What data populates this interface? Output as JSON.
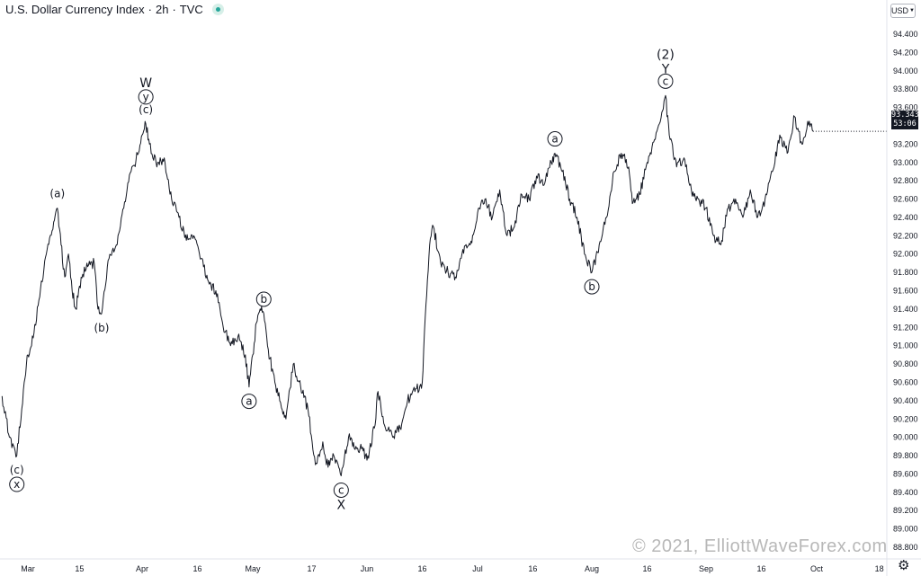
{
  "header": {
    "symbol": "U.S. Dollar Currency Index",
    "interval": "2h",
    "source": "TVC",
    "separator": "·",
    "status_color": "#26a69a"
  },
  "currency_button": {
    "label": "USD"
  },
  "price_tag": {
    "price": "93.343",
    "countdown": "53:06"
  },
  "watermark": "© 2021, ElliottWaveForex.com",
  "settings_icon": "gear-icon",
  "chart_data": {
    "type": "line",
    "title": "",
    "xlabel": "",
    "ylabel": "",
    "ylim": [
      88.8,
      94.4
    ],
    "yticks": [
      "94.400",
      "94.200",
      "94.000",
      "93.800",
      "93.600",
      "93.400",
      "93.200",
      "93.000",
      "92.800",
      "92.600",
      "92.400",
      "92.200",
      "92.000",
      "91.800",
      "91.600",
      "91.400",
      "91.200",
      "91.000",
      "90.800",
      "90.600",
      "90.400",
      "90.200",
      "90.000",
      "89.800",
      "89.600",
      "89.400",
      "89.200",
      "89.000",
      "88.800"
    ],
    "xticks": [
      {
        "label": "Mar",
        "x": "2021-03-01"
      },
      {
        "label": "15",
        "x": "2021-03-15"
      },
      {
        "label": "Apr",
        "x": "2021-04-01"
      },
      {
        "label": "16",
        "x": "2021-04-16"
      },
      {
        "label": "May",
        "x": "2021-05-01"
      },
      {
        "label": "17",
        "x": "2021-05-17"
      },
      {
        "label": "Jun",
        "x": "2021-06-01"
      },
      {
        "label": "16",
        "x": "2021-06-16"
      },
      {
        "label": "Jul",
        "x": "2021-07-01"
      },
      {
        "label": "16",
        "x": "2021-07-16"
      },
      {
        "label": "Aug",
        "x": "2021-08-01"
      },
      {
        "label": "16",
        "x": "2021-08-16"
      },
      {
        "label": "Sep",
        "x": "2021-09-01"
      },
      {
        "label": "16",
        "x": "2021-09-16"
      },
      {
        "label": "Oct",
        "x": "2021-10-01"
      },
      {
        "label": "18",
        "x": "2021-10-18"
      }
    ],
    "grid": false,
    "series": [
      {
        "color": "#131722",
        "points": [
          {
            "x": "2021-02-22",
            "y": 90.45
          },
          {
            "x": "2021-02-24",
            "y": 90.0
          },
          {
            "x": "2021-02-26",
            "y": 89.8
          },
          {
            "x": "2021-02-28",
            "y": 90.6
          },
          {
            "x": "2021-03-01",
            "y": 90.9
          },
          {
            "x": "2021-03-02",
            "y": 91.0
          },
          {
            "x": "2021-03-04",
            "y": 91.5
          },
          {
            "x": "2021-03-06",
            "y": 92.0
          },
          {
            "x": "2021-03-08",
            "y": 92.35
          },
          {
            "x": "2021-03-09",
            "y": 92.5
          },
          {
            "x": "2021-03-10",
            "y": 92.1
          },
          {
            "x": "2021-03-11",
            "y": 91.75
          },
          {
            "x": "2021-03-12",
            "y": 92.0
          },
          {
            "x": "2021-03-13",
            "y": 91.6
          },
          {
            "x": "2021-03-14",
            "y": 91.4
          },
          {
            "x": "2021-03-15",
            "y": 91.65
          },
          {
            "x": "2021-03-17",
            "y": 91.9
          },
          {
            "x": "2021-03-19",
            "y": 91.9
          },
          {
            "x": "2021-03-20",
            "y": 91.4
          },
          {
            "x": "2021-03-21",
            "y": 91.35
          },
          {
            "x": "2021-03-23",
            "y": 91.95
          },
          {
            "x": "2021-03-25",
            "y": 92.1
          },
          {
            "x": "2021-03-27",
            "y": 92.5
          },
          {
            "x": "2021-03-29",
            "y": 92.9
          },
          {
            "x": "2021-03-31",
            "y": 93.1
          },
          {
            "x": "2021-04-01",
            "y": 93.3
          },
          {
            "x": "2021-04-02",
            "y": 93.42
          },
          {
            "x": "2021-04-03",
            "y": 93.2
          },
          {
            "x": "2021-04-05",
            "y": 92.95
          },
          {
            "x": "2021-04-07",
            "y": 93.05
          },
          {
            "x": "2021-04-09",
            "y": 92.6
          },
          {
            "x": "2021-04-11",
            "y": 92.4
          },
          {
            "x": "2021-04-13",
            "y": 92.15
          },
          {
            "x": "2021-04-15",
            "y": 92.2
          },
          {
            "x": "2021-04-17",
            "y": 91.95
          },
          {
            "x": "2021-04-19",
            "y": 91.7
          },
          {
            "x": "2021-04-21",
            "y": 91.6
          },
          {
            "x": "2021-04-23",
            "y": 91.2
          },
          {
            "x": "2021-04-25",
            "y": 91.0
          },
          {
            "x": "2021-04-27",
            "y": 91.1
          },
          {
            "x": "2021-04-29",
            "y": 90.9
          },
          {
            "x": "2021-04-30",
            "y": 90.55
          },
          {
            "x": "2021-05-01",
            "y": 90.9
          },
          {
            "x": "2021-05-02",
            "y": 91.25
          },
          {
            "x": "2021-05-03",
            "y": 91.4
          },
          {
            "x": "2021-05-04",
            "y": 91.35
          },
          {
            "x": "2021-05-05",
            "y": 91.0
          },
          {
            "x": "2021-05-07",
            "y": 90.6
          },
          {
            "x": "2021-05-09",
            "y": 90.3
          },
          {
            "x": "2021-05-10",
            "y": 90.2
          },
          {
            "x": "2021-05-12",
            "y": 90.8
          },
          {
            "x": "2021-05-14",
            "y": 90.55
          },
          {
            "x": "2021-05-16",
            "y": 90.3
          },
          {
            "x": "2021-05-18",
            "y": 89.7
          },
          {
            "x": "2021-05-20",
            "y": 89.95
          },
          {
            "x": "2021-05-21",
            "y": 89.7
          },
          {
            "x": "2021-05-23",
            "y": 89.8
          },
          {
            "x": "2021-05-25",
            "y": 89.58
          },
          {
            "x": "2021-05-27",
            "y": 90.0
          },
          {
            "x": "2021-05-29",
            "y": 89.9
          },
          {
            "x": "2021-05-31",
            "y": 89.85
          },
          {
            "x": "2021-06-01",
            "y": 89.75
          },
          {
            "x": "2021-06-03",
            "y": 90.1
          },
          {
            "x": "2021-06-04",
            "y": 90.5
          },
          {
            "x": "2021-06-06",
            "y": 90.1
          },
          {
            "x": "2021-06-08",
            "y": 90.0
          },
          {
            "x": "2021-06-10",
            "y": 90.1
          },
          {
            "x": "2021-06-12",
            "y": 90.4
          },
          {
            "x": "2021-06-14",
            "y": 90.5
          },
          {
            "x": "2021-06-16",
            "y": 90.6
          },
          {
            "x": "2021-06-17",
            "y": 91.45
          },
          {
            "x": "2021-06-18",
            "y": 92.1
          },
          {
            "x": "2021-06-19",
            "y": 92.3
          },
          {
            "x": "2021-06-21",
            "y": 91.9
          },
          {
            "x": "2021-06-23",
            "y": 91.8
          },
          {
            "x": "2021-06-25",
            "y": 91.75
          },
          {
            "x": "2021-06-27",
            "y": 92.05
          },
          {
            "x": "2021-06-29",
            "y": 92.1
          },
          {
            "x": "2021-07-01",
            "y": 92.45
          },
          {
            "x": "2021-07-03",
            "y": 92.6
          },
          {
            "x": "2021-07-05",
            "y": 92.4
          },
          {
            "x": "2021-07-07",
            "y": 92.7
          },
          {
            "x": "2021-07-09",
            "y": 92.2
          },
          {
            "x": "2021-07-11",
            "y": 92.3
          },
          {
            "x": "2021-07-13",
            "y": 92.65
          },
          {
            "x": "2021-07-15",
            "y": 92.6
          },
          {
            "x": "2021-07-17",
            "y": 92.85
          },
          {
            "x": "2021-07-19",
            "y": 92.75
          },
          {
            "x": "2021-07-21",
            "y": 93.0
          },
          {
            "x": "2021-07-22",
            "y": 93.1
          },
          {
            "x": "2021-07-24",
            "y": 92.9
          },
          {
            "x": "2021-07-26",
            "y": 92.6
          },
          {
            "x": "2021-07-28",
            "y": 92.4
          },
          {
            "x": "2021-07-30",
            "y": 92.0
          },
          {
            "x": "2021-08-01",
            "y": 91.8
          },
          {
            "x": "2021-08-03",
            "y": 92.1
          },
          {
            "x": "2021-08-05",
            "y": 92.4
          },
          {
            "x": "2021-08-07",
            "y": 92.9
          },
          {
            "x": "2021-08-09",
            "y": 93.1
          },
          {
            "x": "2021-08-11",
            "y": 92.95
          },
          {
            "x": "2021-08-12",
            "y": 92.55
          },
          {
            "x": "2021-08-14",
            "y": 92.65
          },
          {
            "x": "2021-08-16",
            "y": 93.0
          },
          {
            "x": "2021-08-18",
            "y": 93.25
          },
          {
            "x": "2021-08-20",
            "y": 93.55
          },
          {
            "x": "2021-08-21",
            "y": 93.73
          },
          {
            "x": "2021-08-22",
            "y": 93.3
          },
          {
            "x": "2021-08-24",
            "y": 92.95
          },
          {
            "x": "2021-08-26",
            "y": 93.05
          },
          {
            "x": "2021-08-28",
            "y": 92.7
          },
          {
            "x": "2021-08-30",
            "y": 92.6
          },
          {
            "x": "2021-09-01",
            "y": 92.5
          },
          {
            "x": "2021-09-03",
            "y": 92.2
          },
          {
            "x": "2021-09-05",
            "y": 92.1
          },
          {
            "x": "2021-09-07",
            "y": 92.5
          },
          {
            "x": "2021-09-09",
            "y": 92.6
          },
          {
            "x": "2021-09-11",
            "y": 92.4
          },
          {
            "x": "2021-09-13",
            "y": 92.7
          },
          {
            "x": "2021-09-15",
            "y": 92.4
          },
          {
            "x": "2021-09-17",
            "y": 92.6
          },
          {
            "x": "2021-09-19",
            "y": 92.9
          },
          {
            "x": "2021-09-21",
            "y": 93.3
          },
          {
            "x": "2021-09-23",
            "y": 93.1
          },
          {
            "x": "2021-09-25",
            "y": 93.5
          },
          {
            "x": "2021-09-27",
            "y": 93.2
          },
          {
            "x": "2021-09-29",
            "y": 93.45
          },
          {
            "x": "2021-09-30",
            "y": 93.34
          }
        ]
      }
    ],
    "annotations": [
      {
        "text": "(c)",
        "x": "2021-02-26",
        "y": 89.8,
        "position": "below"
      },
      {
        "text": "x",
        "circled": true,
        "x": "2021-02-26",
        "y": 89.8,
        "position": "below2"
      },
      {
        "text": "(a)",
        "x": "2021-03-09",
        "y": 92.5,
        "position": "above"
      },
      {
        "text": "(b)",
        "x": "2021-03-21",
        "y": 91.35,
        "position": "below"
      },
      {
        "text": "W",
        "x": "2021-04-02",
        "y": 93.42,
        "position": "above3"
      },
      {
        "text": "y",
        "circled": true,
        "x": "2021-04-02",
        "y": 93.42,
        "position": "above2"
      },
      {
        "text": "(c)",
        "x": "2021-04-02",
        "y": 93.42,
        "position": "above"
      },
      {
        "text": "a",
        "circled": true,
        "x": "2021-04-30",
        "y": 90.55,
        "position": "below"
      },
      {
        "text": "b",
        "circled": true,
        "x": "2021-05-04",
        "y": 91.35,
        "position": "above"
      },
      {
        "text": "c",
        "circled": true,
        "x": "2021-05-25",
        "y": 89.58,
        "position": "below"
      },
      {
        "text": "X",
        "x": "2021-05-25",
        "y": 89.58,
        "position": "below2"
      },
      {
        "text": "a",
        "circled": true,
        "x": "2021-07-22",
        "y": 93.1,
        "position": "above"
      },
      {
        "text": "b",
        "circled": true,
        "x": "2021-08-01",
        "y": 91.8,
        "position": "below"
      },
      {
        "text": "c",
        "circled": true,
        "x": "2021-08-21",
        "y": 93.73,
        "position": "above"
      },
      {
        "text": "Y",
        "x": "2021-08-21",
        "y": 93.73,
        "position": "above2"
      },
      {
        "text": "(2)",
        "x": "2021-08-21",
        "y": 93.73,
        "position": "above3"
      }
    ]
  }
}
